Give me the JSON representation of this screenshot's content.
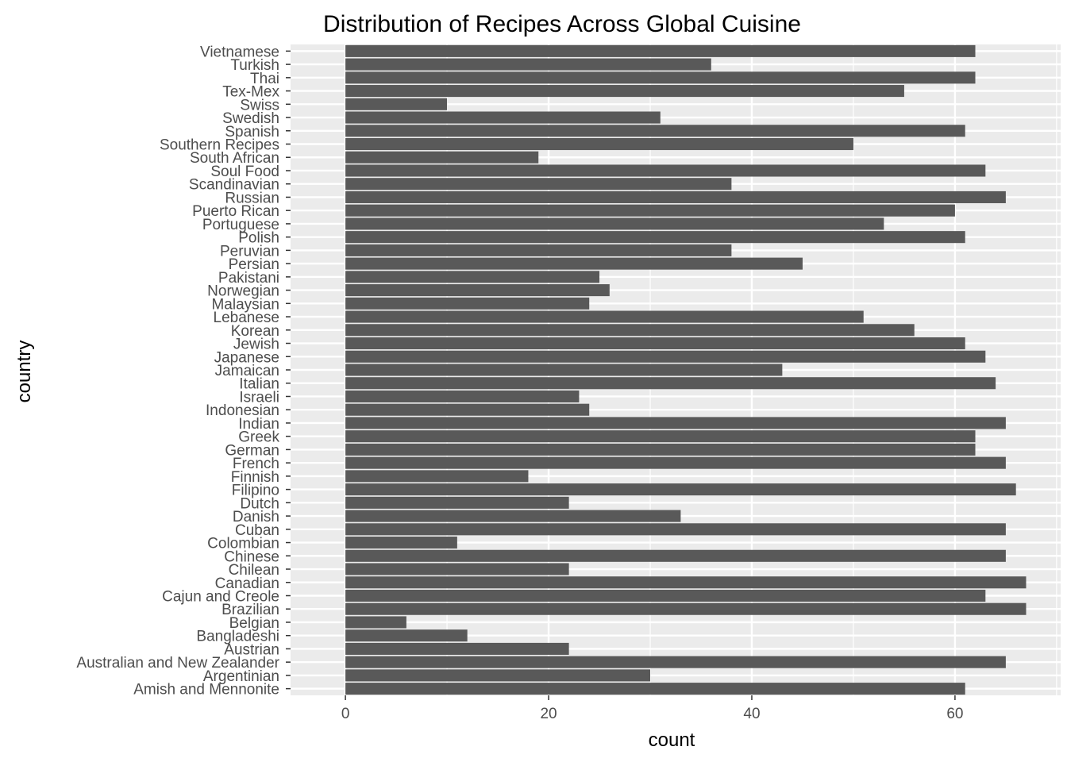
{
  "chart_data": {
    "type": "bar",
    "orientation": "horizontal",
    "title": "Distribution of Recipes Across Global Cuisine",
    "xlabel": "count",
    "ylabel": "country",
    "xlim": [
      -5.4,
      70.4
    ],
    "x_ticks": [
      0,
      20,
      40,
      60
    ],
    "grid": true,
    "legend": "none",
    "categories": [
      "Amish and Mennonite",
      "Argentinian",
      "Australian and New Zealander",
      "Austrian",
      "Bangladeshi",
      "Belgian",
      "Brazilian",
      "Cajun and Creole",
      "Canadian",
      "Chilean",
      "Chinese",
      "Colombian",
      "Cuban",
      "Danish",
      "Dutch",
      "Filipino",
      "Finnish",
      "French",
      "German",
      "Greek",
      "Indian",
      "Indonesian",
      "Israeli",
      "Italian",
      "Jamaican",
      "Japanese",
      "Jewish",
      "Korean",
      "Lebanese",
      "Malaysian",
      "Norwegian",
      "Pakistani",
      "Persian",
      "Peruvian",
      "Polish",
      "Portuguese",
      "Puerto Rican",
      "Russian",
      "Scandinavian",
      "Soul Food",
      "South African",
      "Southern Recipes",
      "Spanish",
      "Swedish",
      "Swiss",
      "Tex-Mex",
      "Thai",
      "Turkish",
      "Vietnamese"
    ],
    "values": [
      61,
      30,
      65,
      22,
      12,
      6,
      67,
      63,
      67,
      22,
      65,
      11,
      65,
      33,
      22,
      66,
      18,
      65,
      62,
      62,
      65,
      24,
      23,
      64,
      43,
      63,
      61,
      56,
      51,
      24,
      26,
      25,
      45,
      38,
      61,
      53,
      60,
      65,
      38,
      63,
      19,
      50,
      61,
      31,
      10,
      55,
      62,
      36,
      62
    ],
    "colors": {
      "panel_background": "#ebebeb",
      "grid_major": "#ffffff",
      "bar_fill": "#595959",
      "tick_text": "#4d4d4d",
      "tick_mark": "#333333"
    }
  }
}
